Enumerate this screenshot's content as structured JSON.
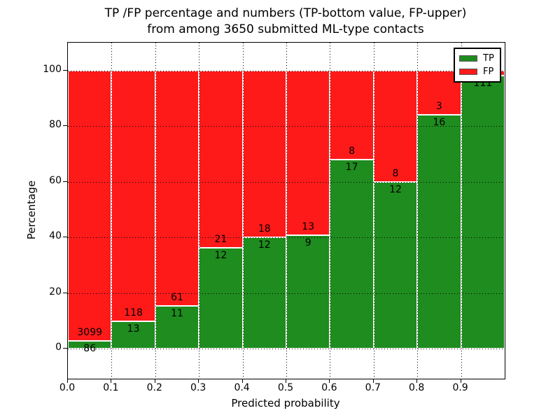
{
  "chart_data": {
    "type": "bar",
    "stacked": true,
    "title": "TP /FP percentage and numbers (TP-bottom value, FP-upper)",
    "subtitle": "from among 3650 submitted ML-type contacts",
    "xlabel": "Predicted probability",
    "ylabel": "Percentage",
    "total_contacts": 3650,
    "x_tick_labels": [
      "0.0",
      "0.1",
      "0.2",
      "0.3",
      "0.4",
      "0.5",
      "0.6",
      "0.7",
      "0.8",
      "0.9"
    ],
    "y_ticks": [
      0,
      20,
      40,
      60,
      80,
      100
    ],
    "xlim": [
      0.0,
      1.0
    ],
    "ylim": [
      -11,
      110
    ],
    "bin_width": 0.1,
    "grid": true,
    "series": [
      {
        "name": "TP",
        "color": "#1e8c1e"
      },
      {
        "name": "FP",
        "color": "#ff1a1a"
      }
    ],
    "legend": {
      "position": "upper-right",
      "entries": [
        "TP",
        "FP"
      ]
    },
    "bins": [
      {
        "x_start": 0.0,
        "tp": 86,
        "fp": 3099,
        "fp_label_visible": true
      },
      {
        "x_start": 0.1,
        "tp": 13,
        "fp": 118,
        "fp_label_visible": true
      },
      {
        "x_start": 0.2,
        "tp": 11,
        "fp": 61,
        "fp_label_visible": true
      },
      {
        "x_start": 0.3,
        "tp": 12,
        "fp": 21,
        "fp_label_visible": true
      },
      {
        "x_start": 0.4,
        "tp": 12,
        "fp": 18,
        "fp_label_visible": true
      },
      {
        "x_start": 0.5,
        "tp": 9,
        "fp": 13,
        "fp_label_visible": true
      },
      {
        "x_start": 0.6,
        "tp": 17,
        "fp": 8,
        "fp_label_visible": true
      },
      {
        "x_start": 0.7,
        "tp": 12,
        "fp": 8,
        "fp_label_visible": true
      },
      {
        "x_start": 0.8,
        "tp": 16,
        "fp": 3,
        "fp_label_visible": true
      },
      {
        "x_start": 0.9,
        "tp": 111,
        "fp": 2,
        "fp_label_visible": false
      }
    ]
  }
}
